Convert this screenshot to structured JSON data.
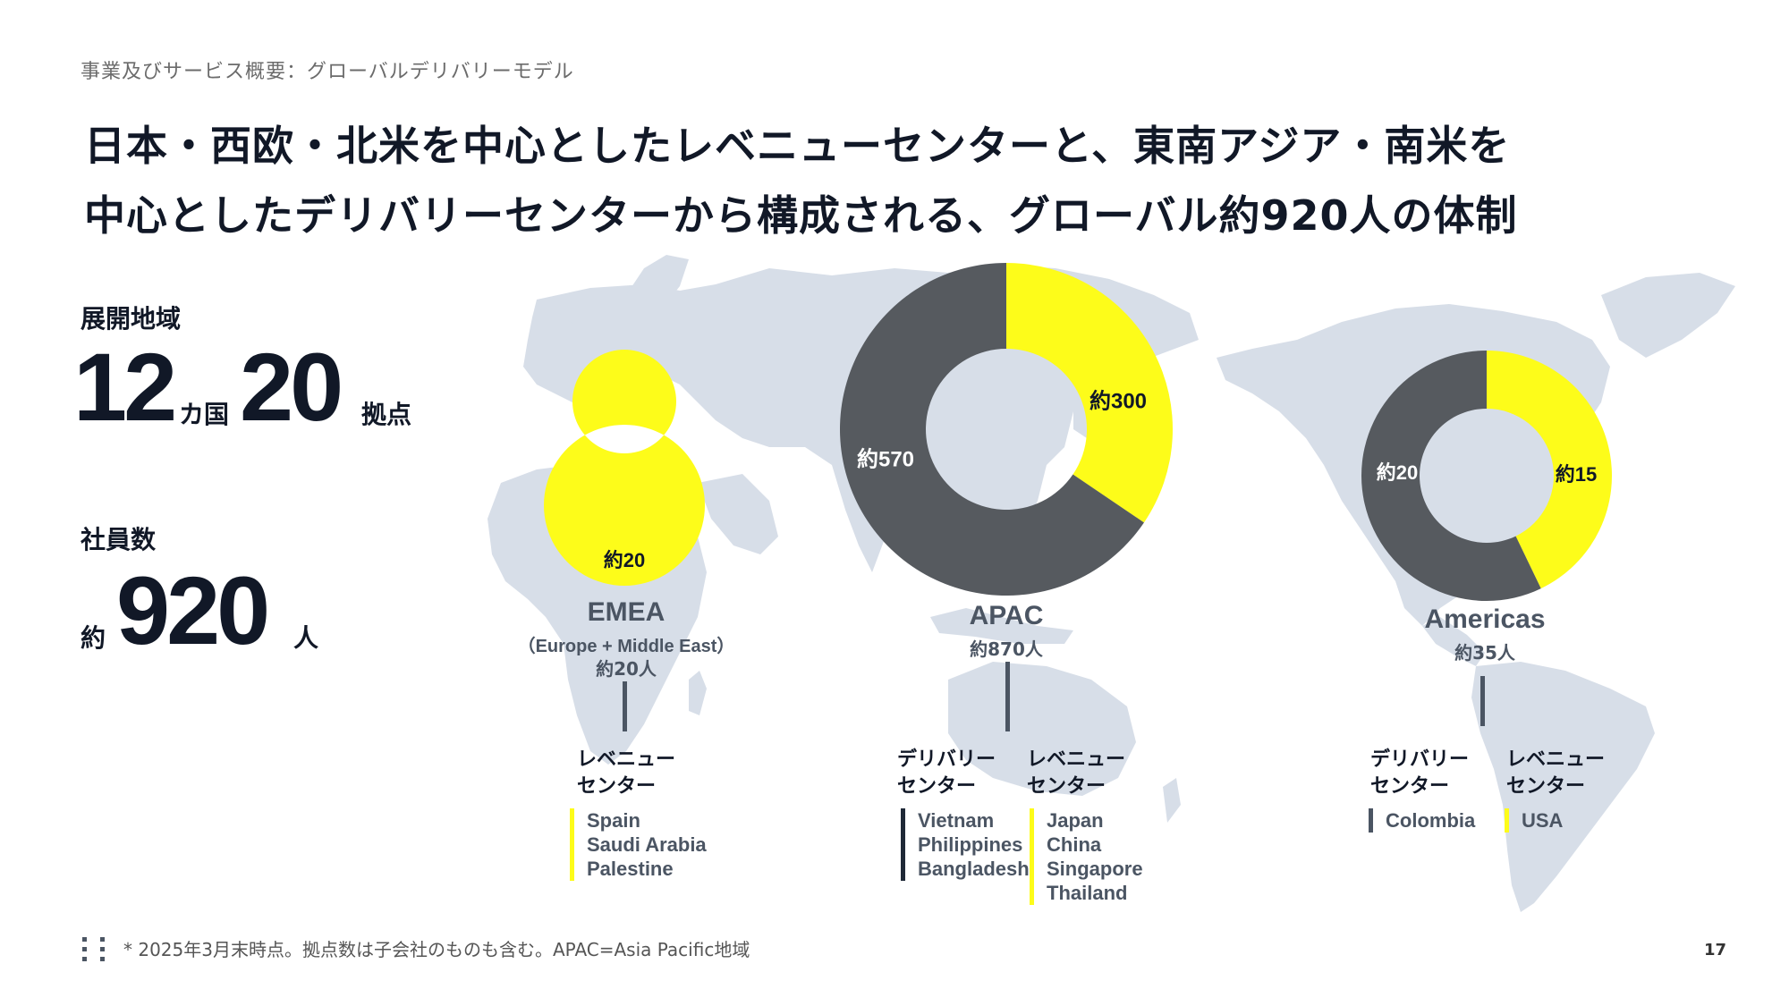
{
  "breadcrumb": "事業及びサービス概要：グローバルデリバリーモデル",
  "headline": {
    "line1": "日本・西欧・北米を中心としたレベニューセンターと、東南アジア・南米を",
    "line2": "中心としたデリバリーセンターから構成される、グローバル約920人の体制"
  },
  "stats": {
    "regions_label": "展開地域",
    "countries": "12",
    "countries_unit": "カ国",
    "sites": "20",
    "sites_unit": "拠点",
    "employees_label": "社員数",
    "employees_prefix": "約",
    "employees": "920",
    "employees_unit": "人"
  },
  "regions": {
    "emea": {
      "name": "EMEA",
      "sub": "（Europe + Middle East）",
      "total": "約20人",
      "cat_revenue": "レベニュー\nセンター",
      "revenue_countries": [
        "Spain",
        "Saudi Arabia",
        "Palestine"
      ]
    },
    "apac": {
      "name": "APAC",
      "total": "約870人",
      "cat_delivery": "デリバリー\nセンター",
      "cat_revenue": "レベニュー\nセンター",
      "delivery_countries": [
        "Vietnam",
        "Philippines",
        "Bangladesh"
      ],
      "revenue_countries": [
        "Japan",
        "China",
        "Singapore",
        "Thailand"
      ]
    },
    "americas": {
      "name": "Americas",
      "total": "約35人",
      "cat_delivery": "デリバリー\nセンター",
      "cat_revenue": "レベニュー\nセンター",
      "delivery_countries": [
        "Colombia"
      ],
      "revenue_countries": [
        "USA"
      ]
    }
  },
  "footnote": "* 2025年3月末時点。拠点数は子会社のものも含む。APAC=Asia Pacific地域",
  "page_number": "17",
  "colors": {
    "revenue": "#fdfc1a",
    "delivery": "#565a5f",
    "map": "#d7dee8",
    "text_dark": "#111827"
  },
  "chart_data": [
    {
      "type": "pie",
      "region": "EMEA",
      "series": [
        {
          "name": "レベニューセンター",
          "value": 20,
          "label": "約20",
          "color": "#fdfc1a"
        }
      ]
    },
    {
      "type": "pie",
      "region": "APAC",
      "series": [
        {
          "name": "レベニューセンター",
          "value": 300,
          "label": "約300",
          "color": "#fdfc1a"
        },
        {
          "name": "デリバリーセンター",
          "value": 570,
          "label": "約570",
          "color": "#565a5f"
        }
      ]
    },
    {
      "type": "pie",
      "region": "Americas",
      "series": [
        {
          "name": "レベニューセンター",
          "value": 15,
          "label": "約15",
          "color": "#fdfc1a"
        },
        {
          "name": "デリバリーセンター",
          "value": 20,
          "label": "約20",
          "color": "#565a5f"
        }
      ]
    }
  ]
}
